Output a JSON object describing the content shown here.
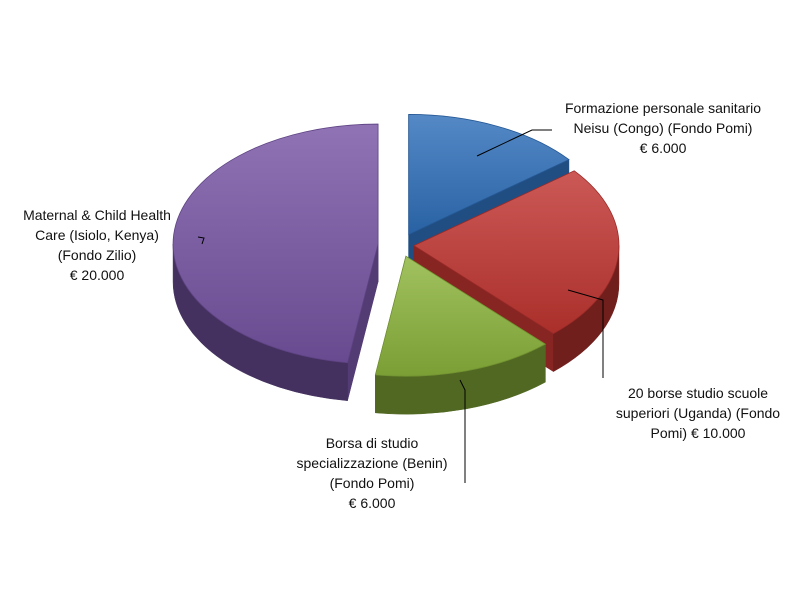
{
  "chart_data": {
    "type": "pie",
    "title": "",
    "slices": [
      {
        "lines": [
          "Formazione personale sanitario",
          "Neisu (Congo) (Fondo Pomi)",
          "€ 6.000"
        ],
        "value": 6000,
        "color": "#2f6fba"
      },
      {
        "lines": [
          "20 borse studio scuole",
          "superiori (Uganda) (Fondo",
          "Pomi) € 10.000"
        ],
        "value": 10000,
        "color": "#c13531"
      },
      {
        "lines": [
          "Borsa di studio",
          "specializzazione (Benin)",
          "(Fondo Pomi)",
          "€ 6.000"
        ],
        "value": 6000,
        "color": "#8cb43c"
      },
      {
        "lines": [
          "Maternal & Child Health",
          "Care (Isiolo, Kenya)",
          "(Fondo Zilio)",
          "€ 20.000"
        ],
        "value": 20000,
        "color": "#7654a4"
      }
    ]
  }
}
